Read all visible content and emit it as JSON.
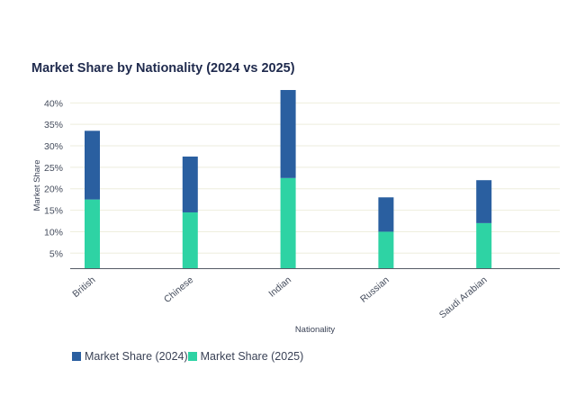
{
  "chart_data": {
    "type": "bar",
    "stacked": true,
    "title": "Market Share by Nationality (2024 vs 2025)",
    "xlabel": "Nationality",
    "ylabel": "Market Share",
    "categories": [
      "British",
      "Chinese",
      "Indian",
      "Russian",
      "Saudi Arabian"
    ],
    "series": [
      {
        "name": "Market Share (2025)",
        "color": "#2ed3a4",
        "values": [
          17.5,
          14.5,
          22.5,
          10.0,
          12.0
        ]
      },
      {
        "name": "Market Share (2024)",
        "color": "#2a5fa0",
        "values": [
          16.0,
          13.0,
          20.5,
          8.0,
          10.0
        ]
      }
    ],
    "yticks": [
      5,
      10,
      15,
      20,
      25,
      30,
      35,
      40
    ],
    "ytick_labels": [
      "5%",
      "10%",
      "15%",
      "20%",
      "25%",
      "30%",
      "35%",
      "40%"
    ],
    "ylim": [
      1.5,
      43
    ],
    "grid": true,
    "legend_position": "bottom-left"
  }
}
